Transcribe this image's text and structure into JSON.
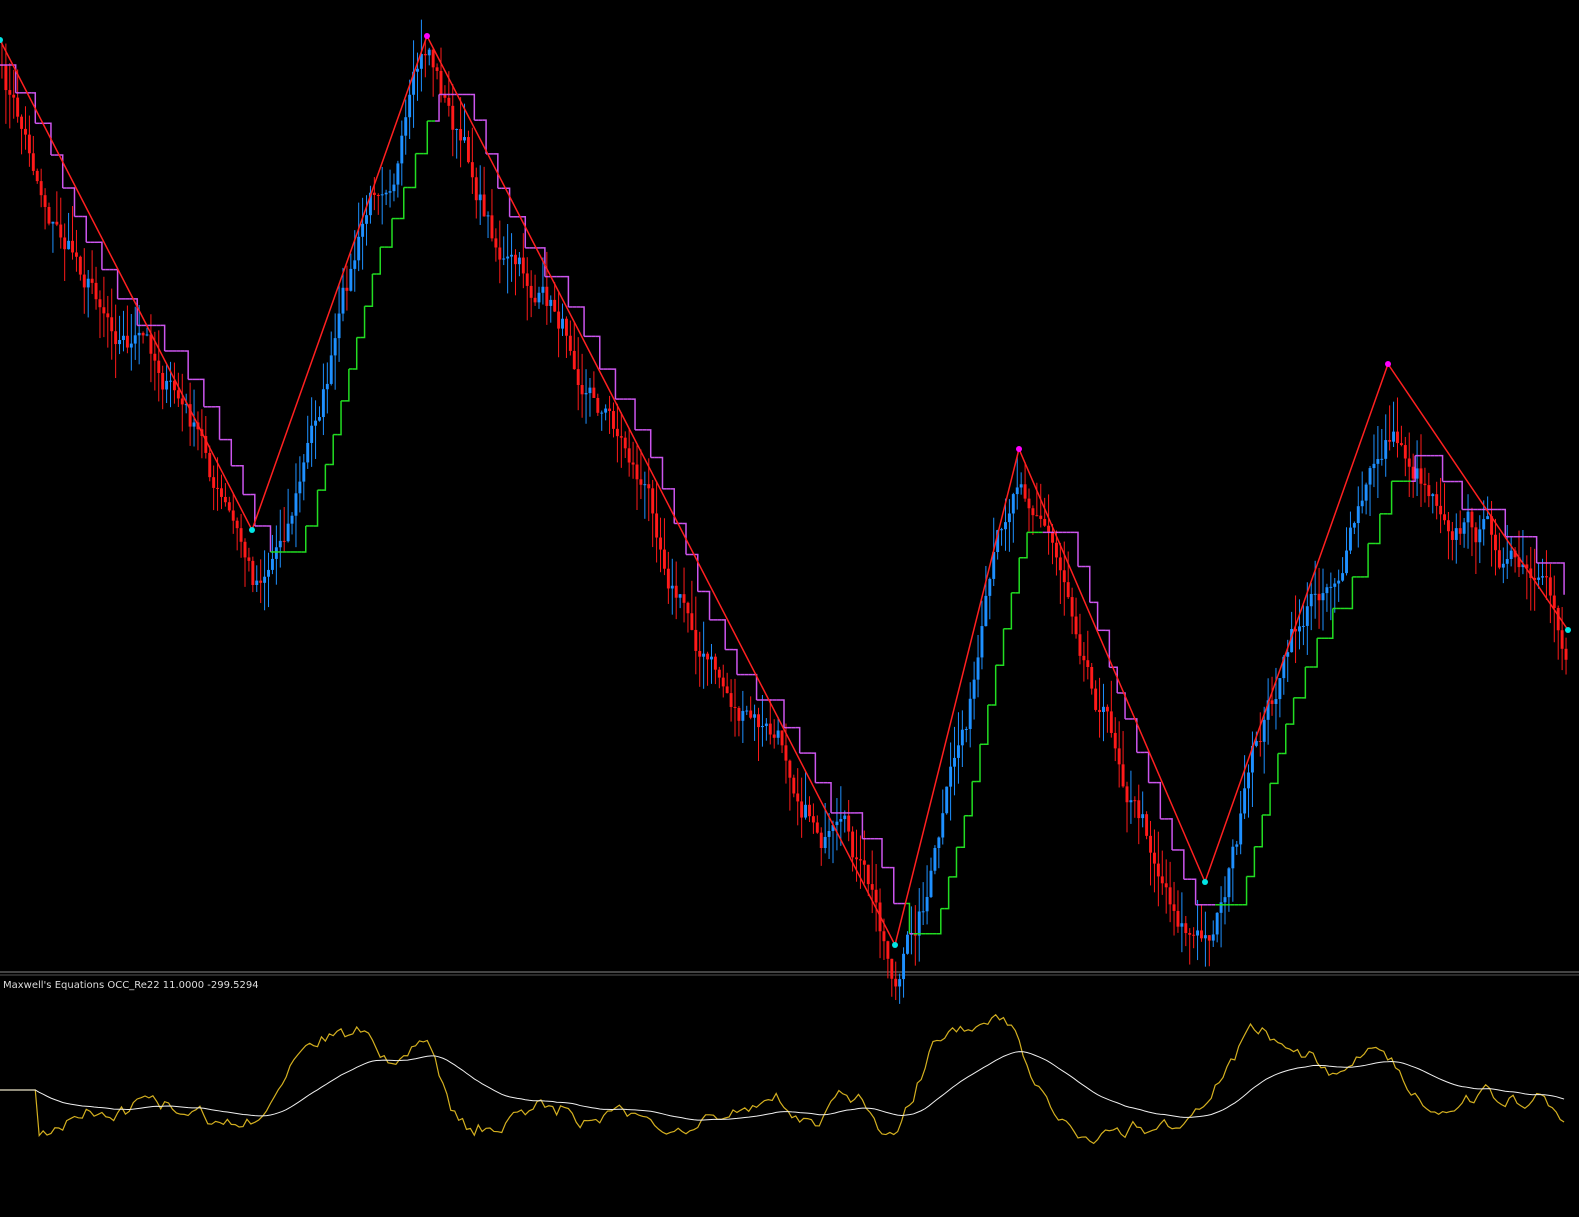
{
  "indicator_panel": {
    "label": "Maxwell's Equations OCC_Re22 11.0000 -299.5294"
  }
}
